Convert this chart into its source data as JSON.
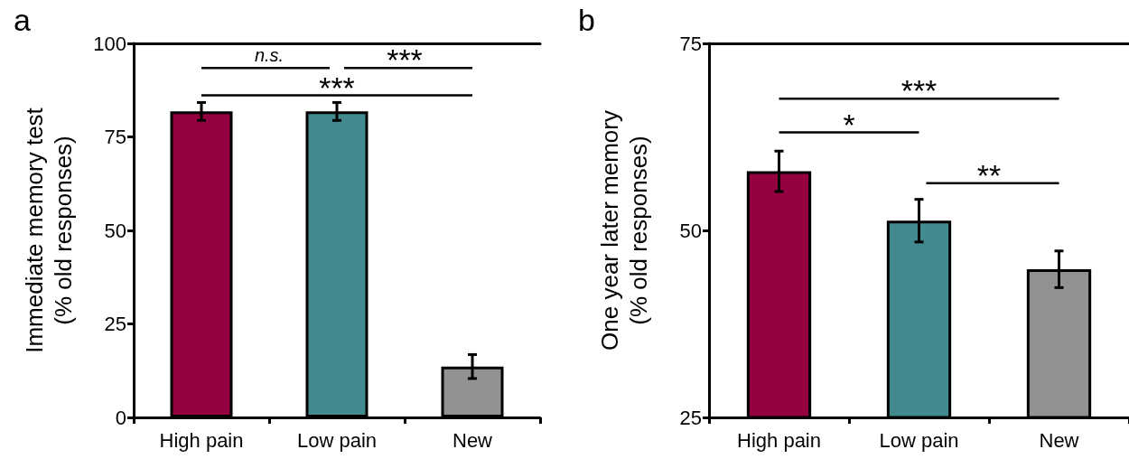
{
  "chart_data": [
    {
      "type": "bar",
      "title": "a",
      "ylabel": "Immediate memory test\n(% old responses)",
      "categories": [
        "High pain",
        "Low pain",
        "New"
      ],
      "values": [
        81.8,
        81.8,
        13.6
      ],
      "errors": [
        2.4,
        2.4,
        3.2
      ],
      "colors": [
        "#940040",
        "#428a8e",
        "#929292"
      ],
      "ylim": [
        0,
        100
      ],
      "yticks": [
        0,
        25,
        50,
        75,
        100
      ],
      "annotations": [
        "n.s.",
        "***",
        "***"
      ]
    },
    {
      "type": "bar",
      "title": "b",
      "ylabel": "One year later memory\n(% old responses)",
      "categories": [
        "High pain",
        "Low pain",
        "New"
      ],
      "values": [
        57.9,
        51.3,
        44.8
      ],
      "errors": [
        2.7,
        2.85,
        2.45
      ],
      "colors": [
        "#940040",
        "#428a8e",
        "#929292"
      ],
      "ylim": [
        25,
        75
      ],
      "yticks": [
        25,
        50,
        75
      ],
      "annotations": [
        "***",
        "*",
        "**"
      ]
    }
  ]
}
